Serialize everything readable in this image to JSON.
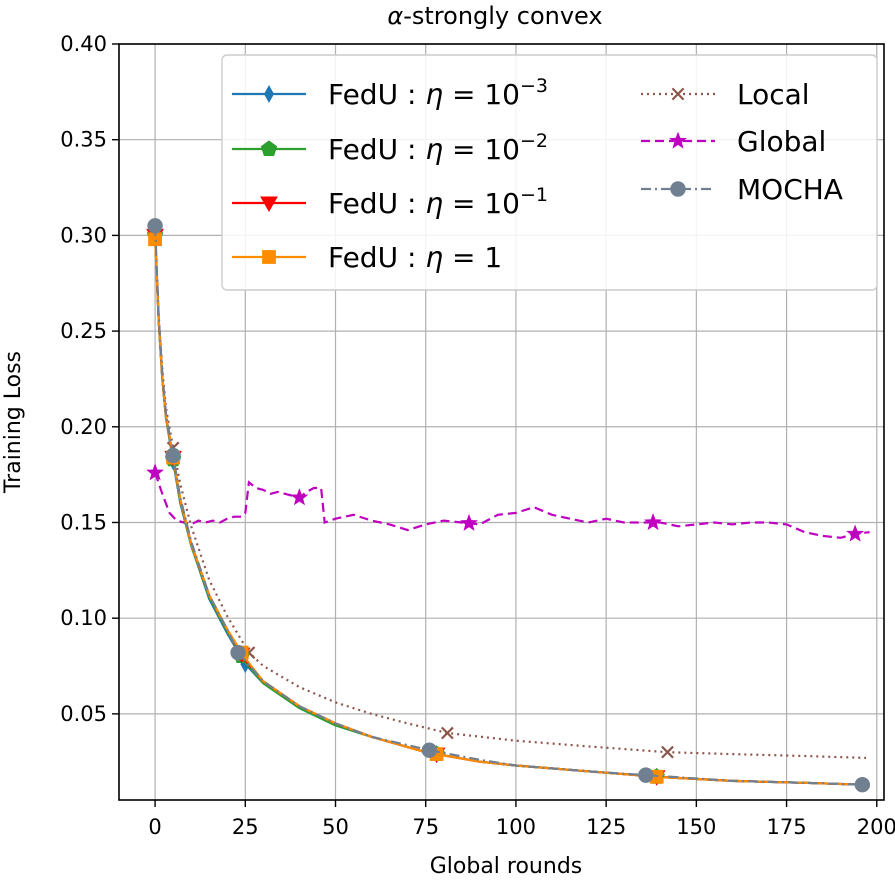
{
  "chart_data": {
    "type": "line",
    "title_prefix": "α",
    "title_suffix": "-strongly convex",
    "xlabel": "Global rounds",
    "ylabel": "Training Loss",
    "xlim": [
      -10,
      202
    ],
    "ylim": [
      0.005,
      0.4
    ],
    "xticks": [
      0,
      25,
      50,
      75,
      100,
      125,
      150,
      175,
      200
    ],
    "yticks": [
      0.05,
      0.1,
      0.15,
      0.2,
      0.25,
      0.3,
      0.35,
      0.4
    ],
    "ytick_labels": [
      "0.05",
      "0.10",
      "0.15",
      "0.20",
      "0.25",
      "0.30",
      "0.35",
      "0.40"
    ],
    "grid": true,
    "legend_position": "top-right",
    "series": [
      {
        "name": "FedU",
        "eta": "10",
        "eta_exp": "−3",
        "color": "#1f77b4",
        "dash": "solid",
        "marker": "thin_diamond",
        "x": [
          0,
          1,
          2,
          3,
          5,
          7,
          10,
          15,
          20,
          25,
          30,
          40,
          50,
          60,
          75,
          90,
          100,
          120,
          140,
          160,
          180,
          196
        ],
        "y": [
          0.3,
          0.255,
          0.225,
          0.205,
          0.182,
          0.16,
          0.138,
          0.11,
          0.092,
          0.076,
          0.066,
          0.053,
          0.044,
          0.038,
          0.03,
          0.025,
          0.023,
          0.02,
          0.017,
          0.015,
          0.014,
          0.013
        ],
        "marker_x": [
          0,
          5,
          25,
          78,
          139
        ]
      },
      {
        "name": "FedU",
        "eta": "10",
        "eta_exp": "−2",
        "color": "#2ca02c",
        "dash": "solid",
        "marker": "pentagon",
        "x": [
          0,
          1,
          2,
          3,
          5,
          7,
          10,
          15,
          20,
          25,
          30,
          40,
          50,
          60,
          75,
          90,
          100,
          120,
          140,
          160,
          180,
          196
        ],
        "y": [
          0.3,
          0.255,
          0.225,
          0.205,
          0.183,
          0.161,
          0.138,
          0.111,
          0.093,
          0.077,
          0.066,
          0.053,
          0.044,
          0.038,
          0.03,
          0.025,
          0.023,
          0.02,
          0.017,
          0.015,
          0.014,
          0.013
        ],
        "marker_x": [
          0,
          5,
          24,
          78,
          139
        ]
      },
      {
        "name": "FedU",
        "eta": "10",
        "eta_exp": "−1",
        "color": "#ff0000",
        "dash": "solid",
        "marker": "triangle_down",
        "x": [
          0,
          1,
          2,
          3,
          5,
          7,
          10,
          15,
          20,
          25,
          30,
          40,
          50,
          60,
          75,
          90,
          100,
          120,
          140,
          160,
          180,
          196
        ],
        "y": [
          0.3,
          0.256,
          0.226,
          0.206,
          0.184,
          0.162,
          0.139,
          0.112,
          0.094,
          0.078,
          0.067,
          0.054,
          0.045,
          0.038,
          0.03,
          0.025,
          0.023,
          0.02,
          0.017,
          0.015,
          0.014,
          0.013
        ],
        "marker_x": [
          0,
          5,
          24,
          78,
          139
        ]
      },
      {
        "name": "FedU",
        "eta": "1",
        "eta_exp": "",
        "color": "#ff8c00",
        "dash": "solid",
        "marker": "square",
        "x": [
          0,
          1,
          2,
          3,
          5,
          7,
          10,
          15,
          20,
          25,
          30,
          40,
          50,
          60,
          75,
          90,
          100,
          120,
          140,
          160,
          180,
          196
        ],
        "y": [
          0.298,
          0.256,
          0.226,
          0.206,
          0.184,
          0.162,
          0.139,
          0.112,
          0.094,
          0.079,
          0.067,
          0.054,
          0.045,
          0.038,
          0.03,
          0.025,
          0.023,
          0.02,
          0.017,
          0.015,
          0.014,
          0.013
        ],
        "marker_x": [
          0,
          5,
          24,
          78,
          139
        ]
      },
      {
        "name": "Local",
        "color": "#8c564b",
        "dash": "dotted",
        "marker": "x",
        "x": [
          0,
          1,
          2,
          3,
          5,
          7,
          10,
          15,
          20,
          26,
          30,
          40,
          50,
          60,
          70,
          81,
          100,
          120,
          142,
          160,
          180,
          197
        ],
        "y": [
          0.3,
          0.258,
          0.23,
          0.21,
          0.189,
          0.17,
          0.148,
          0.12,
          0.101,
          0.082,
          0.075,
          0.064,
          0.056,
          0.05,
          0.045,
          0.04,
          0.036,
          0.033,
          0.03,
          0.029,
          0.028,
          0.027
        ],
        "marker_x": [
          0,
          5,
          26,
          81,
          142
        ]
      },
      {
        "name": "Global",
        "color": "#c000c0",
        "dash": "dashed",
        "marker": "star",
        "x": [
          0,
          2,
          4,
          6,
          8,
          10,
          12,
          14,
          16,
          18,
          20,
          22,
          24,
          25,
          26,
          28,
          30,
          32,
          34,
          36,
          38,
          40,
          42,
          44,
          46,
          47,
          50,
          55,
          60,
          65,
          70,
          75,
          80,
          85,
          90,
          95,
          100,
          105,
          110,
          115,
          120,
          125,
          130,
          135,
          140,
          145,
          150,
          155,
          160,
          165,
          170,
          175,
          180,
          185,
          190,
          194,
          198
        ],
        "y": [
          0.176,
          0.165,
          0.155,
          0.151,
          0.15,
          0.149,
          0.151,
          0.15,
          0.151,
          0.15,
          0.152,
          0.153,
          0.153,
          0.155,
          0.171,
          0.168,
          0.167,
          0.165,
          0.166,
          0.165,
          0.164,
          0.163,
          0.166,
          0.168,
          0.168,
          0.15,
          0.152,
          0.154,
          0.151,
          0.149,
          0.146,
          0.149,
          0.151,
          0.15,
          0.149,
          0.154,
          0.155,
          0.158,
          0.154,
          0.152,
          0.15,
          0.152,
          0.15,
          0.15,
          0.15,
          0.148,
          0.149,
          0.15,
          0.149,
          0.15,
          0.15,
          0.149,
          0.145,
          0.143,
          0.142,
          0.144,
          0.145
        ],
        "marker_x": [
          0,
          40,
          87,
          138,
          194
        ]
      },
      {
        "name": "MOCHA",
        "color": "#708090",
        "dash": "dashdot",
        "marker": "circle",
        "x": [
          0,
          1,
          2,
          3,
          5,
          7,
          10,
          15,
          20,
          23,
          30,
          40,
          50,
          60,
          76,
          90,
          100,
          120,
          136,
          160,
          180,
          196
        ],
        "y": [
          0.305,
          0.258,
          0.228,
          0.207,
          0.185,
          0.163,
          0.14,
          0.112,
          0.094,
          0.082,
          0.067,
          0.054,
          0.045,
          0.038,
          0.031,
          0.026,
          0.023,
          0.02,
          0.018,
          0.015,
          0.014,
          0.013
        ],
        "marker_x": [
          0,
          5,
          23,
          76,
          136,
          196
        ]
      }
    ]
  }
}
